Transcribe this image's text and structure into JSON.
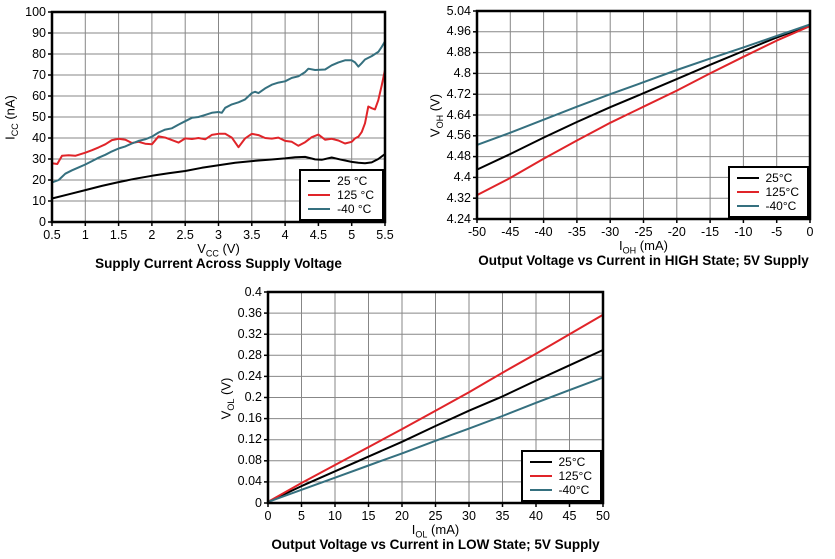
{
  "page": {
    "background": "#ffffff"
  },
  "colors": {
    "series_black": "#000000",
    "series_red": "#e02429",
    "series_teal": "#35707f",
    "grid": "#878787",
    "frame": "#000000"
  },
  "chart_data": [
    {
      "type": "line",
      "title": "Supply Current Across Supply Voltage",
      "xlabel": {
        "pre": "V",
        "sub": "CC",
        "post": " (V)"
      },
      "ylabel": {
        "pre": "I",
        "sub": "CC",
        "post": " (nA)"
      },
      "xlim": [
        0.5,
        5.5
      ],
      "ylim": [
        0,
        100
      ],
      "grid": true,
      "legend_position": "bottom-right",
      "x_ticks": [
        0.5,
        1,
        1.5,
        2,
        2.5,
        3,
        3.5,
        4,
        4.5,
        5,
        5.5
      ],
      "x_tick_labels": [
        "0.5",
        "1",
        "1.5",
        "2",
        "2.5",
        "3",
        "3.5",
        "4",
        "4.5",
        "5",
        "5.5"
      ],
      "y_ticks": [
        0,
        10,
        20,
        30,
        40,
        50,
        60,
        70,
        80,
        90,
        100
      ],
      "y_tick_labels": [
        "0",
        "10",
        "20",
        "30",
        "40",
        "50",
        "60",
        "70",
        "80",
        "90",
        "100"
      ],
      "legend": [
        "25 °C",
        "125 °C",
        "-40 °C"
      ],
      "series": [
        {
          "name": "25 °C",
          "color": "series_black",
          "points": [
            [
              0.5,
              11.2
            ],
            [
              0.75,
              13.2
            ],
            [
              1.0,
              15.2
            ],
            [
              1.25,
              17.2
            ],
            [
              1.5,
              19
            ],
            [
              1.75,
              20.6
            ],
            [
              2.0,
              22
            ],
            [
              2.25,
              23.2
            ],
            [
              2.5,
              24.3
            ],
            [
              2.75,
              25.8
            ],
            [
              3.0,
              27
            ],
            [
              3.25,
              28.2
            ],
            [
              3.5,
              29
            ],
            [
              3.75,
              29.6
            ],
            [
              4.0,
              30.3
            ],
            [
              4.15,
              30.8
            ],
            [
              4.3,
              31
            ],
            [
              4.45,
              29.8
            ],
            [
              4.55,
              29.6
            ],
            [
              4.7,
              30.7
            ],
            [
              4.85,
              29.6
            ],
            [
              5.0,
              28.6
            ],
            [
              5.1,
              28.2
            ],
            [
              5.2,
              28
            ],
            [
              5.3,
              28.4
            ],
            [
              5.4,
              30
            ],
            [
              5.5,
              32.4
            ]
          ]
        },
        {
          "name": "125 °C",
          "color": "series_red",
          "points": [
            [
              0.5,
              28
            ],
            [
              0.58,
              27.6
            ],
            [
              0.65,
              31.5
            ],
            [
              0.75,
              31.8
            ],
            [
              0.85,
              31.5
            ],
            [
              1.0,
              33
            ],
            [
              1.1,
              34.2
            ],
            [
              1.2,
              35.5
            ],
            [
              1.3,
              37
            ],
            [
              1.4,
              39
            ],
            [
              1.5,
              39.6
            ],
            [
              1.6,
              39.2
            ],
            [
              1.7,
              37.6
            ],
            [
              1.8,
              38.2
            ],
            [
              1.9,
              37.3
            ],
            [
              2.0,
              37
            ],
            [
              2.1,
              40.8
            ],
            [
              2.2,
              40.2
            ],
            [
              2.3,
              39
            ],
            [
              2.4,
              37.8
            ],
            [
              2.5,
              39.8
            ],
            [
              2.6,
              39.5
            ],
            [
              2.7,
              40
            ],
            [
              2.8,
              39.4
            ],
            [
              2.9,
              41.5
            ],
            [
              3.0,
              42
            ],
            [
              3.1,
              42
            ],
            [
              3.2,
              40.2
            ],
            [
              3.3,
              35.6
            ],
            [
              3.4,
              39.8
            ],
            [
              3.5,
              42
            ],
            [
              3.6,
              41.4
            ],
            [
              3.7,
              40
            ],
            [
              3.8,
              39.7
            ],
            [
              3.9,
              40.2
            ],
            [
              4.0,
              38.6
            ],
            [
              4.1,
              38.2
            ],
            [
              4.2,
              36.3
            ],
            [
              4.3,
              38
            ],
            [
              4.4,
              40.4
            ],
            [
              4.5,
              41.6
            ],
            [
              4.6,
              39.2
            ],
            [
              4.7,
              39.6
            ],
            [
              4.8,
              38.8
            ],
            [
              4.9,
              37.4
            ],
            [
              5.0,
              38.2
            ],
            [
              5.05,
              39.8
            ],
            [
              5.1,
              40.6
            ],
            [
              5.15,
              42.8
            ],
            [
              5.2,
              47
            ],
            [
              5.25,
              55
            ],
            [
              5.3,
              54.2
            ],
            [
              5.35,
              53.6
            ],
            [
              5.4,
              58
            ],
            [
              5.45,
              65
            ],
            [
              5.5,
              72.5
            ]
          ]
        },
        {
          "name": "-40 °C",
          "color": "series_teal",
          "points": [
            [
              0.5,
              18.8
            ],
            [
              0.6,
              20
            ],
            [
              0.7,
              23
            ],
            [
              0.8,
              24.6
            ],
            [
              0.9,
              26
            ],
            [
              1.0,
              27.4
            ],
            [
              1.1,
              29
            ],
            [
              1.2,
              30.6
            ],
            [
              1.3,
              32
            ],
            [
              1.4,
              33.6
            ],
            [
              1.5,
              35
            ],
            [
              1.6,
              36
            ],
            [
              1.7,
              37.4
            ],
            [
              1.8,
              38.6
            ],
            [
              1.9,
              39.4
            ],
            [
              2.0,
              40.6
            ],
            [
              2.1,
              42.6
            ],
            [
              2.2,
              44
            ],
            [
              2.3,
              44.6
            ],
            [
              2.4,
              46.4
            ],
            [
              2.5,
              48
            ],
            [
              2.6,
              49.6
            ],
            [
              2.7,
              50
            ],
            [
              2.8,
              51
            ],
            [
              2.9,
              52
            ],
            [
              3.0,
              52.4
            ],
            [
              3.05,
              52
            ],
            [
              3.1,
              54.4
            ],
            [
              3.2,
              56
            ],
            [
              3.3,
              57
            ],
            [
              3.4,
              58.4
            ],
            [
              3.5,
              61.4
            ],
            [
              3.55,
              62
            ],
            [
              3.6,
              61.4
            ],
            [
              3.7,
              63.6
            ],
            [
              3.8,
              65.4
            ],
            [
              3.9,
              66.4
            ],
            [
              4.0,
              67
            ],
            [
              4.1,
              68.6
            ],
            [
              4.2,
              69.4
            ],
            [
              4.3,
              71.4
            ],
            [
              4.35,
              73
            ],
            [
              4.45,
              72.4
            ],
            [
              4.6,
              72.6
            ],
            [
              4.7,
              74.6
            ],
            [
              4.8,
              76
            ],
            [
              4.9,
              77
            ],
            [
              5.0,
              77
            ],
            [
              5.05,
              76
            ],
            [
              5.1,
              74
            ],
            [
              5.15,
              75.6
            ],
            [
              5.2,
              77.4
            ],
            [
              5.3,
              79
            ],
            [
              5.4,
              81
            ],
            [
              5.45,
              83.4
            ],
            [
              5.5,
              86
            ]
          ]
        }
      ]
    },
    {
      "type": "line",
      "title": "Output Voltage vs Current in HIGH State; 5V Supply",
      "xlabel": {
        "pre": "I",
        "sub": "OH",
        "post": " (mA)"
      },
      "ylabel": {
        "pre": "V",
        "sub": "OH",
        "post": " (V)"
      },
      "xlim": [
        -50,
        0
      ],
      "ylim": [
        4.24,
        5.04
      ],
      "grid": true,
      "legend_position": "bottom-right",
      "x_ticks": [
        -50,
        -45,
        -40,
        -35,
        -30,
        -25,
        -20,
        -15,
        -10,
        -5,
        0
      ],
      "x_tick_labels": [
        "-50",
        "-45",
        "-40",
        "-35",
        "-30",
        "-25",
        "-20",
        "-15",
        "-10",
        "-5",
        "0"
      ],
      "y_ticks": [
        4.24,
        4.32,
        4.4,
        4.48,
        4.56,
        4.64,
        4.72,
        4.8,
        4.88,
        4.96,
        5.04
      ],
      "y_tick_labels": [
        "4.24",
        "4.32",
        "4.4",
        "4.48",
        "4.56",
        "4.64",
        "4.72",
        "4.8",
        "4.88",
        "4.96",
        "5.04"
      ],
      "legend": [
        "25°C",
        "125°C",
        "-40°C"
      ],
      "series": [
        {
          "name": "25°C",
          "color": "series_black",
          "points": [
            [
              -50,
              4.43
            ],
            [
              -45,
              4.49
            ],
            [
              -40,
              4.553
            ],
            [
              -35,
              4.613
            ],
            [
              -30,
              4.67
            ],
            [
              -25,
              4.724
            ],
            [
              -20,
              4.778
            ],
            [
              -15,
              4.833
            ],
            [
              -10,
              4.886
            ],
            [
              -5,
              4.938
            ],
            [
              0,
              4.985
            ]
          ]
        },
        {
          "name": "125°C",
          "color": "series_red",
          "points": [
            [
              -50,
              4.332
            ],
            [
              -45,
              4.398
            ],
            [
              -40,
              4.472
            ],
            [
              -35,
              4.542
            ],
            [
              -30,
              4.61
            ],
            [
              -25,
              4.672
            ],
            [
              -20,
              4.734
            ],
            [
              -15,
              4.8
            ],
            [
              -10,
              4.864
            ],
            [
              -5,
              4.926
            ],
            [
              0,
              4.982
            ]
          ]
        },
        {
          "name": "-40°C",
          "color": "series_teal",
          "points": [
            [
              -50,
              4.525
            ],
            [
              -45,
              4.572
            ],
            [
              -40,
              4.622
            ],
            [
              -35,
              4.672
            ],
            [
              -30,
              4.72
            ],
            [
              -25,
              4.766
            ],
            [
              -20,
              4.813
            ],
            [
              -15,
              4.857
            ],
            [
              -10,
              4.9
            ],
            [
              -5,
              4.944
            ],
            [
              0,
              4.988
            ]
          ]
        }
      ]
    },
    {
      "type": "line",
      "title": "Output Voltage vs Current in LOW State; 5V Supply",
      "xlabel": {
        "pre": "I",
        "sub": "OL",
        "post": " (mA)"
      },
      "ylabel": {
        "pre": "V",
        "sub": "OL",
        "post": " (V)"
      },
      "xlim": [
        0,
        50
      ],
      "ylim": [
        0,
        0.4
      ],
      "grid": true,
      "legend_position": "bottom-right",
      "x_ticks": [
        0,
        5,
        10,
        15,
        20,
        25,
        30,
        35,
        40,
        45,
        50
      ],
      "x_tick_labels": [
        "0",
        "5",
        "10",
        "15",
        "20",
        "25",
        "30",
        "35",
        "40",
        "45",
        "50"
      ],
      "y_ticks": [
        0,
        0.04,
        0.08,
        0.12,
        0.16,
        0.2,
        0.24,
        0.28,
        0.32,
        0.36,
        0.4
      ],
      "y_tick_labels": [
        "0",
        "0.04",
        "0.08",
        "0.12",
        "0.16",
        "0.2",
        "0.24",
        "0.28",
        "0.32",
        "0.36",
        "0.4"
      ],
      "legend": [
        "25°C",
        "125°C",
        "-40°C"
      ],
      "series": [
        {
          "name": "25°C",
          "color": "series_black",
          "points": [
            [
              0,
              0.002
            ],
            [
              5,
              0.032
            ],
            [
              10,
              0.06
            ],
            [
              15,
              0.088
            ],
            [
              20,
              0.116
            ],
            [
              25,
              0.146
            ],
            [
              30,
              0.175
            ],
            [
              35,
              0.202
            ],
            [
              40,
              0.232
            ],
            [
              45,
              0.261
            ],
            [
              50,
              0.29
            ]
          ]
        },
        {
          "name": "125°C",
          "color": "series_red",
          "points": [
            [
              0,
              0.002
            ],
            [
              5,
              0.038
            ],
            [
              10,
              0.072
            ],
            [
              15,
              0.106
            ],
            [
              20,
              0.14
            ],
            [
              25,
              0.175
            ],
            [
              30,
              0.21
            ],
            [
              35,
              0.247
            ],
            [
              40,
              0.283
            ],
            [
              45,
              0.32
            ],
            [
              50,
              0.357
            ]
          ]
        },
        {
          "name": "-40°C",
          "color": "series_teal",
          "points": [
            [
              0,
              0.002
            ],
            [
              5,
              0.025
            ],
            [
              10,
              0.048
            ],
            [
              15,
              0.071
            ],
            [
              20,
              0.094
            ],
            [
              25,
              0.118
            ],
            [
              30,
              0.141
            ],
            [
              35,
              0.165
            ],
            [
              40,
              0.19
            ],
            [
              45,
              0.214
            ],
            [
              50,
              0.238
            ]
          ]
        }
      ]
    }
  ]
}
